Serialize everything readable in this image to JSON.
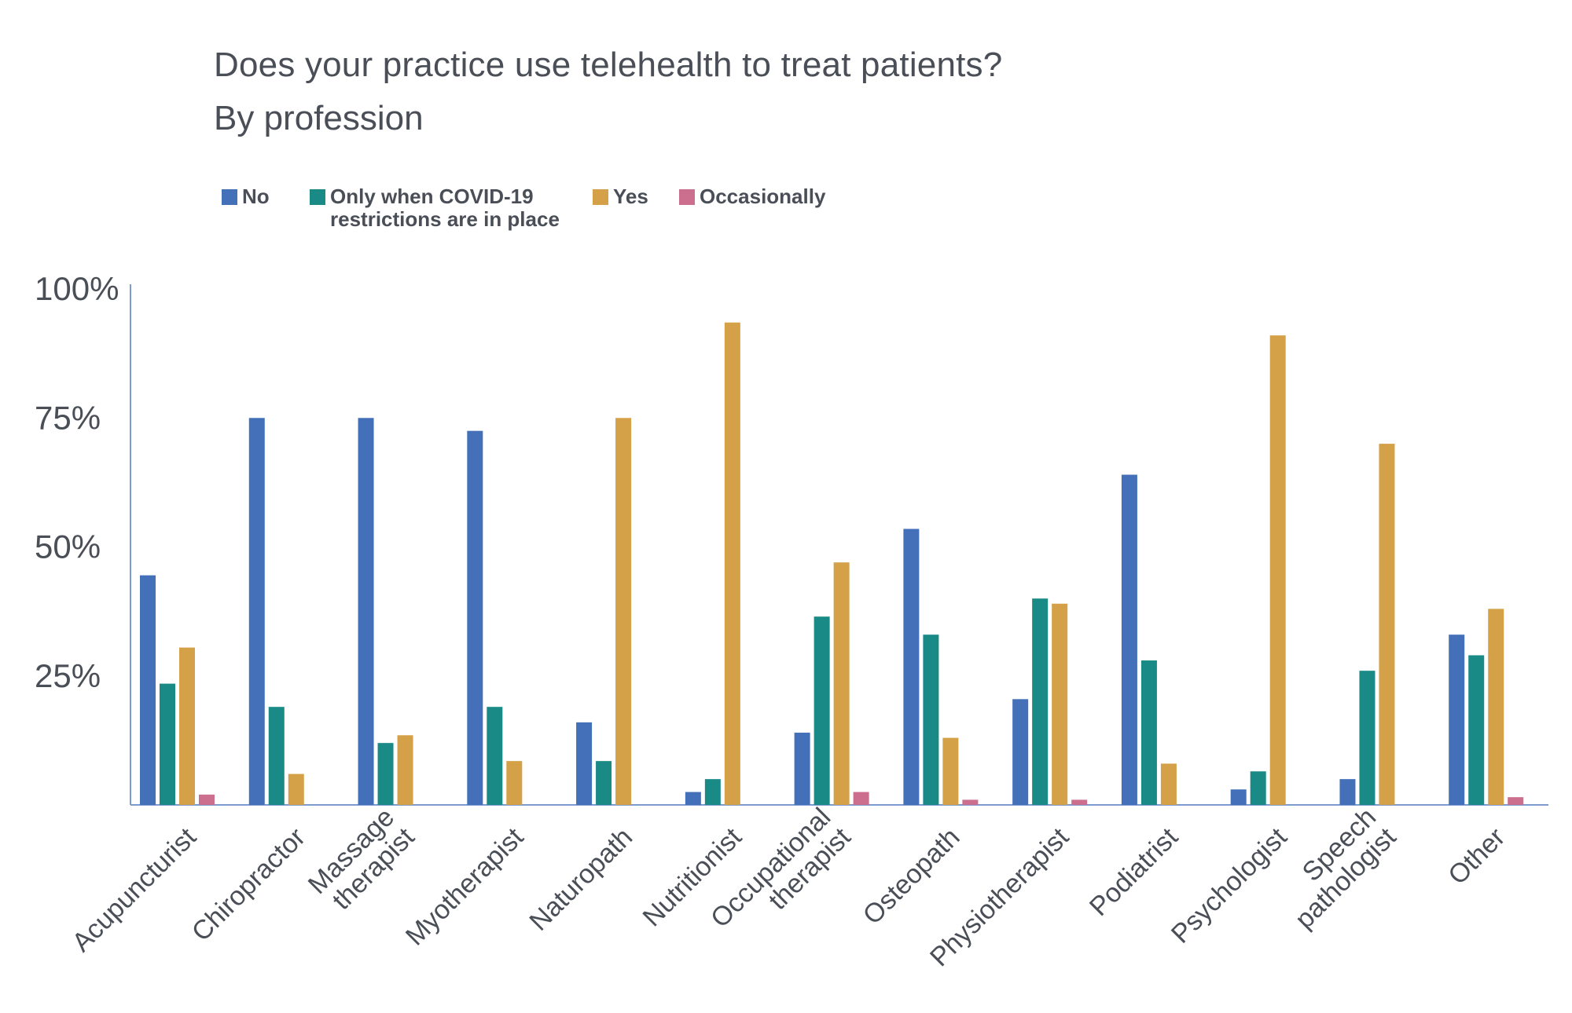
{
  "chart_data": {
    "type": "bar",
    "title": "Does your practice use telehealth to treat patients?",
    "subtitle": "By profession",
    "xlabel": "",
    "ylabel": "",
    "ylim": [
      0,
      100
    ],
    "yticks": [
      25,
      50,
      75,
      100
    ],
    "ytick_labels": [
      "25%",
      "50%",
      "75%",
      "100%"
    ],
    "legend_position": "top-left",
    "grid": false,
    "categories": [
      "Acupuncturist",
      "Chiropractor",
      "Massage therapist",
      "Myotherapist",
      "Naturopath",
      "Nutritionist",
      "Occupational therapist",
      "Osteopath",
      "Physiotherapist",
      "Podiatrist",
      "Psychologist",
      "Speech pathologist",
      "Other"
    ],
    "series": [
      {
        "name": "No",
        "color": "#4370b8",
        "values": [
          44.5,
          75,
          75,
          72.5,
          16,
          2.5,
          14,
          53.5,
          20.5,
          64,
          3,
          5,
          33
        ]
      },
      {
        "name": "Only when COVID-19 restrictions are in place",
        "color": "#1a8a87",
        "values": [
          23.5,
          19,
          12,
          19,
          8.5,
          5,
          36.5,
          33,
          40,
          28,
          6.5,
          26,
          29
        ]
      },
      {
        "name": "Yes",
        "color": "#d4a048",
        "values": [
          30.5,
          6,
          13.5,
          8.5,
          75,
          93.5,
          47,
          13,
          39,
          8,
          91,
          70,
          38
        ]
      },
      {
        "name": "Occasionally",
        "color": "#cc6f8e",
        "values": [
          2,
          0,
          0,
          0,
          0,
          0,
          2.5,
          1,
          1,
          0,
          0,
          0,
          1.5
        ]
      }
    ]
  },
  "legend": {
    "no": "No",
    "covid_line1": "Only when COVID-19",
    "covid_line2": "restrictions are in place",
    "yes": "Yes",
    "occasionally": "Occasionally"
  }
}
